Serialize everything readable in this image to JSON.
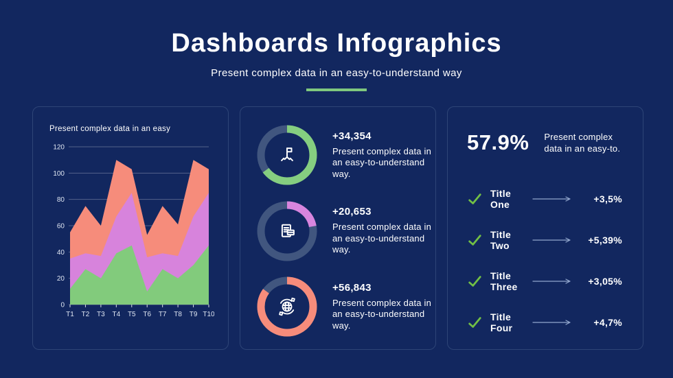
{
  "header": {
    "title": "Dashboards Infographics",
    "subtitle": "Present complex data in an easy-to-understand way"
  },
  "colors": {
    "background": "#12275F",
    "panel_border": "#2E4577",
    "donut_track": "#41567F",
    "check_green": "#72C045",
    "arrow": "#93A7CD",
    "underline_green": "#7FC87E",
    "chart_green": "#82CB7C",
    "chart_purple": "#D783DC",
    "chart_salmon": "#F68C7B"
  },
  "chart_data": [
    {
      "type": "area",
      "title": "Present complex data in an easy",
      "x": [
        "T1",
        "T2",
        "T3",
        "T4",
        "T5",
        "T6",
        "T7",
        "T8",
        "T9",
        "T10"
      ],
      "series": [
        {
          "name": "salmon-layer",
          "color": "#F68C7B",
          "values": [
            55,
            75,
            60,
            110,
            103,
            53,
            75,
            61,
            110,
            103
          ]
        },
        {
          "name": "purple-layer",
          "color": "#D783DC",
          "values": [
            35,
            39,
            37,
            67,
            85,
            36,
            39,
            37,
            67,
            85
          ]
        },
        {
          "name": "green-layer",
          "color": "#82CB7C",
          "values": [
            12,
            27,
            20,
            39,
            45,
            10,
            27,
            20,
            30,
            45
          ]
        }
      ],
      "ylim": [
        0,
        120
      ],
      "yticks": [
        0,
        20,
        40,
        60,
        80,
        100,
        120
      ],
      "grid": true,
      "legend": "none",
      "note": "layers overlap (not stacked), drawn back to front"
    },
    {
      "type": "donut",
      "percent": 65,
      "color": "#85CE80",
      "icon": "flag-milestone-icon",
      "value_label": "+34,354",
      "description": "Present complex data in an easy-to-understand way."
    },
    {
      "type": "donut",
      "percent": 22,
      "color": "#D885DE",
      "icon": "documents-icon",
      "value_label": "+20,653",
      "description": "Present complex data in an easy-to-understand way."
    },
    {
      "type": "donut",
      "percent": 85,
      "color": "#F68C7B",
      "icon": "globe-sync-icon",
      "value_label": "+56,843",
      "description": "Present complex data in an easy-to-understand way."
    }
  ],
  "right_panel": {
    "headline_value": "57.9%",
    "headline_text": "Present complex data in an easy-to.",
    "rows": [
      {
        "title": "Title One",
        "value": "+3,5%"
      },
      {
        "title": "Title Two",
        "value": "+5,39%"
      },
      {
        "title": "Title Three",
        "value": "+3,05%"
      },
      {
        "title": "Title Four",
        "value": "+4,7%"
      }
    ]
  }
}
